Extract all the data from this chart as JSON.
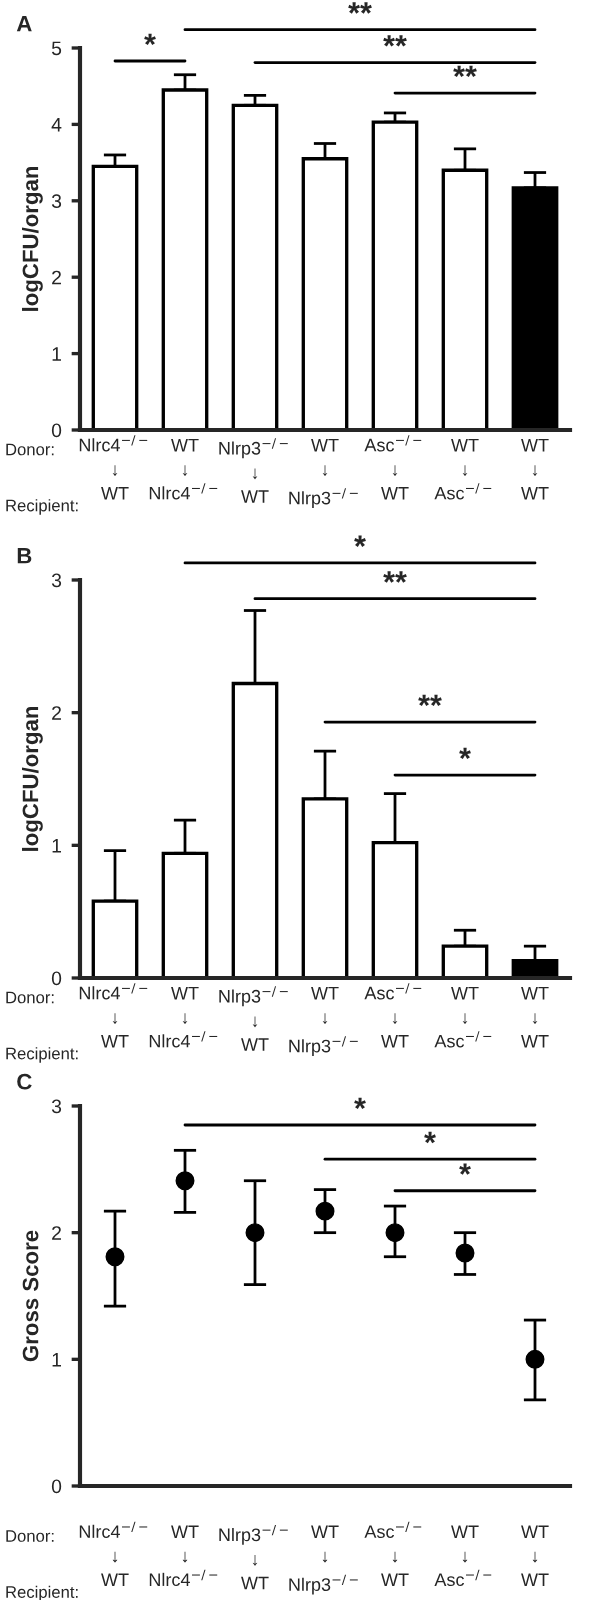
{
  "chart_data": [
    {
      "type": "bar",
      "title": "A",
      "ylabel": "logCFU/organ",
      "categories": [
        "Nlrc4$^{−/−}$\n↓\nWT",
        "WT\n↓\nNlrc4$^{−/−}$",
        "Nlrp3$^{−/−}$\n↓\nWT",
        "WT\n↓\nNlrp3$^{−/−}$",
        "Asc$^{−/−}$\n↓\nWT",
        "WT\n↓\nAsc$^{−/−}$",
        "WT\n↓\nWT"
      ],
      "values": [
        3.45,
        4.45,
        4.25,
        3.55,
        4.03,
        3.4,
        3.17
      ],
      "colors": [
        "#ffffff",
        "#ffffff",
        "#ffffff",
        "#ffffff",
        "#ffffff",
        "#ffffff",
        "#000000"
      ],
      "errors": [
        [
          3.45,
          3.6
        ],
        [
          4.45,
          4.65
        ],
        [
          4.25,
          4.38
        ],
        [
          3.55,
          3.75
        ],
        [
          4.03,
          4.15
        ],
        [
          3.4,
          3.68
        ],
        [
          3.17,
          3.37
        ]
      ],
      "ylim": [
        0,
        5
      ],
      "yticks": [
        0,
        1,
        2,
        3,
        4,
        5
      ],
      "grid": false,
      "legend": false,
      "annotations": [
        "Donor:",
        "Recipient:",
        "*",
        "**",
        "**",
        "**"
      ]
    },
    {
      "type": "bar",
      "title": "B",
      "ylabel": "logCFU/organ",
      "categories": [
        "Nlrc4$^{−/−}$\n↓\nWT",
        "WT\n↓\nNlrc4$^{−/−}$",
        "Nlrp3$^{−/−}$\n↓\nWT",
        "WT\n↓\nNlrp3$^{−/−}$",
        "Asc$^{−/−}$\n↓\nWT",
        "WT\n↓\nAsc$^{−/−}$",
        "WT\n↓\nWT"
      ],
      "values": [
        0.58,
        0.94,
        2.22,
        1.35,
        1.02,
        0.24,
        0.13
      ],
      "colors": [
        "#ffffff",
        "#ffffff",
        "#ffffff",
        "#ffffff",
        "#ffffff",
        "#ffffff",
        "#000000"
      ],
      "errors": [
        [
          0.58,
          0.96
        ],
        [
          0.94,
          1.19
        ],
        [
          2.22,
          2.77
        ],
        [
          1.35,
          1.71
        ],
        [
          1.02,
          1.39
        ],
        [
          0.24,
          0.36
        ],
        [
          0.13,
          0.24
        ]
      ],
      "ylim": [
        0,
        3
      ],
      "yticks": [
        0,
        1,
        2,
        3
      ],
      "grid": false,
      "legend": false,
      "annotations": [
        "Donor:",
        "Recipient:",
        "*",
        "**",
        "**",
        "*"
      ]
    },
    {
      "type": "scatter",
      "title": "C",
      "ylabel": "Gross Score",
      "categories": [
        "Nlrc4$^{−/−}$\n↓\nWT",
        "WT\n↓\nNlrc4$^{−/−}$",
        "Nlrp3$^{−/−}$\n↓\nWT",
        "WT\n↓\nNlrp3$^{−/−}$",
        "Asc$^{−/−}$\n↓\nWT",
        "WT\n↓\nAsc$^{−/−}$",
        "WT\n↓\nWT"
      ],
      "values": [
        1.81,
        2.41,
        2.0,
        2.17,
        2.0,
        1.84,
        1.0
      ],
      "color": "#000000",
      "marker": "circle",
      "errors": [
        [
          1.42,
          2.17
        ],
        [
          2.16,
          2.65
        ],
        [
          1.59,
          2.41
        ],
        [
          2.0,
          2.34
        ],
        [
          1.81,
          2.21
        ],
        [
          1.67,
          2.0
        ],
        [
          0.68,
          1.31
        ]
      ],
      "ylim": [
        0,
        3
      ],
      "yticks": [
        0,
        1,
        2,
        3
      ],
      "grid": false,
      "legend": false,
      "annotations": [
        "Donor:",
        "Recipient:",
        "*",
        "*",
        "*"
      ]
    }
  ]
}
